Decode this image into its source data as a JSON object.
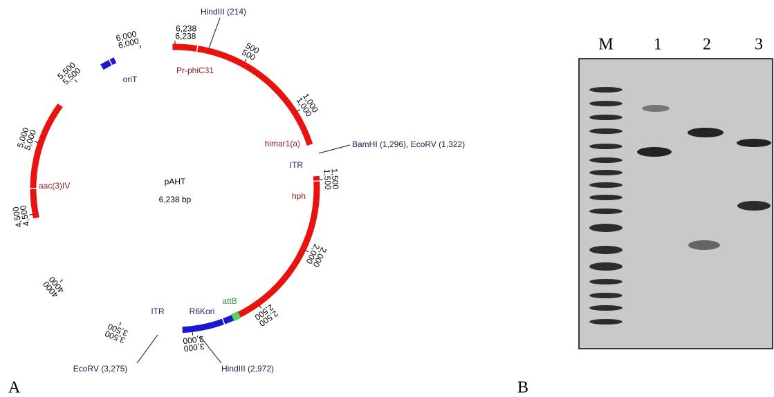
{
  "figure": {
    "panel_a": {
      "label": "A",
      "map": {
        "name": "pAHT",
        "size": "6,238 bp",
        "features": [
          "Pr-phiC31",
          "himar1(a)",
          "ITR",
          "hph",
          "attB",
          "R6Kori",
          "ITR",
          "aac(3)IV",
          "oriT"
        ],
        "sites": [
          "HindIII (214)",
          "BamHI (1,296), EcoRV (1,322)",
          "EcoRV (3,275)",
          "HindIII (2,972)"
        ],
        "ticks": [
          {
            "value": 500,
            "label": "500"
          },
          {
            "value": 1000,
            "label": "1,000"
          },
          {
            "value": 1500,
            "label": "1,500"
          },
          {
            "value": 2000,
            "label": "2,000"
          },
          {
            "value": 2500,
            "label": "2,500"
          },
          {
            "value": 3000,
            "label": "3,000"
          },
          {
            "value": 3500,
            "label": "3,500"
          },
          {
            "value": 4000,
            "label": "4000"
          },
          {
            "value": 4500,
            "label": "4,500"
          },
          {
            "value": 5000,
            "label": "5,000"
          },
          {
            "value": 5500,
            "label": "5,500"
          },
          {
            "value": 6000,
            "label": "6,000"
          },
          {
            "value": 6238,
            "label": "6,238"
          }
        ]
      }
    },
    "panel_b": {
      "label": "B",
      "lanes": [
        "M",
        "1",
        "2",
        "3"
      ]
    }
  }
}
